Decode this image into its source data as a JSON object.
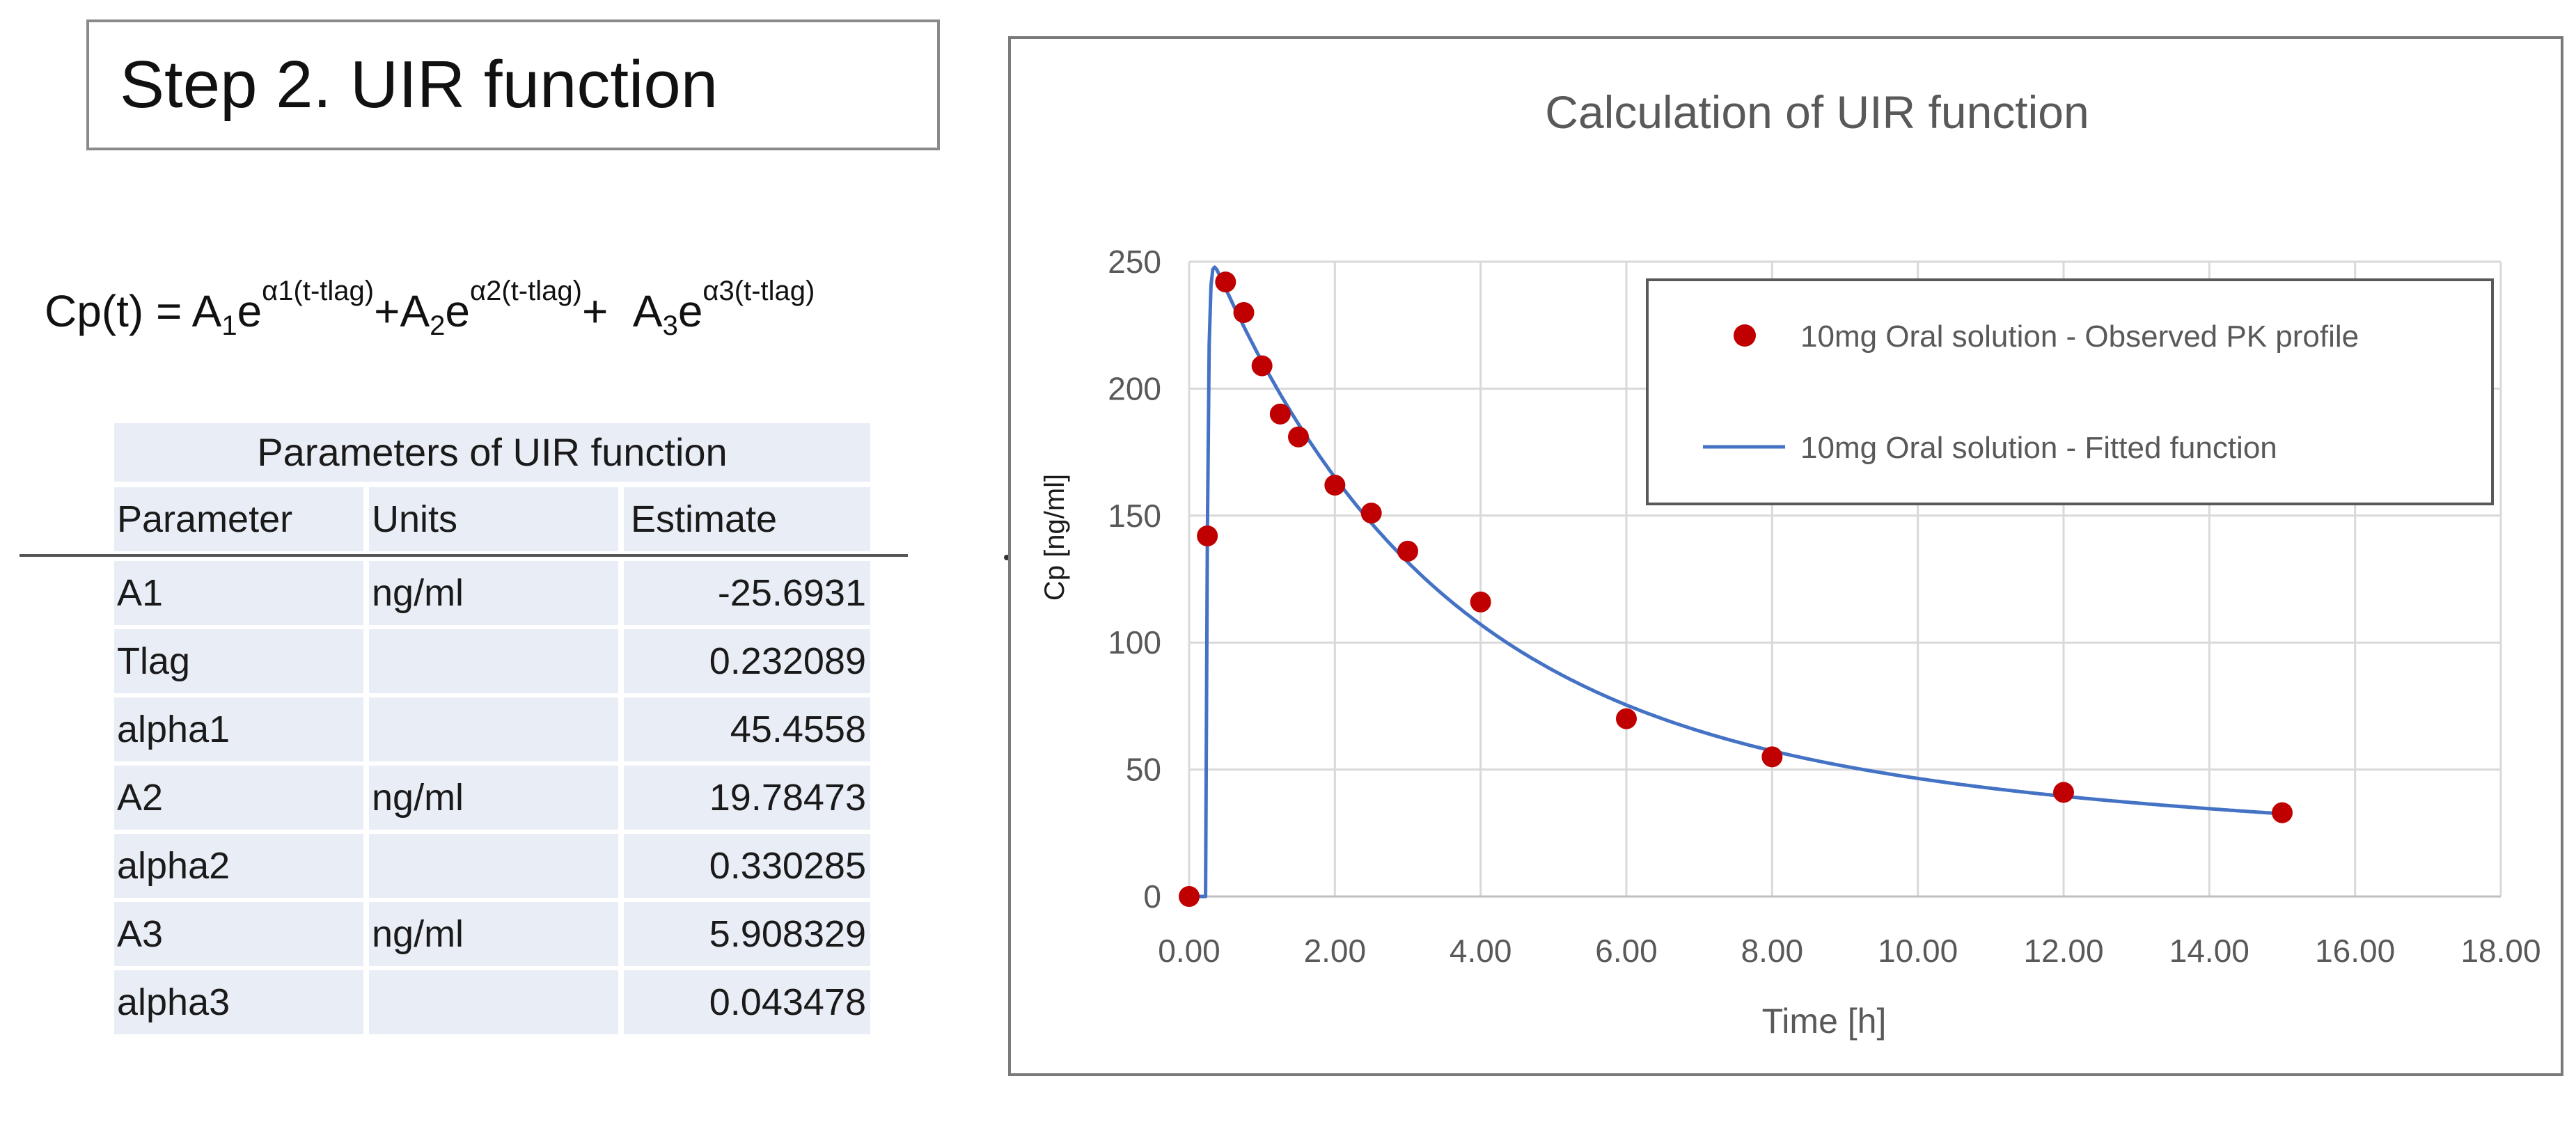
{
  "heading": "Step 2. UIR function",
  "formula": {
    "lhs": "Cp(t) = ",
    "terms": [
      {
        "coef": "A",
        "sub": "1",
        "base": "e",
        "exp": "α1(t-tlag)",
        "sep": "+"
      },
      {
        "coef": "A",
        "sub": "2",
        "base": "e",
        "exp": "α2(t-tlag)",
        "sep": "+  "
      },
      {
        "coef": "A",
        "sub": "3",
        "base": "e",
        "exp": "α3(t-tlag)",
        "sep": ""
      }
    ]
  },
  "table": {
    "caption": "Parameters of UIR function",
    "headers": [
      "Parameter",
      "Units",
      "Estimate"
    ],
    "rows": [
      [
        "A1",
        "ng/ml",
        "-25.6931"
      ],
      [
        "Tlag",
        "",
        "0.232089"
      ],
      [
        "alpha1",
        "",
        "45.4558"
      ],
      [
        "A2",
        "ng/ml",
        "19.78473"
      ],
      [
        "alpha2",
        "",
        "0.330285"
      ],
      [
        "A3",
        "ng/ml",
        "5.908329"
      ],
      [
        "alpha3",
        "",
        "0.043478"
      ]
    ]
  },
  "chart_data": {
    "type": "scatter",
    "title": "Calculation of UIR function",
    "xlabel": "Time [h]",
    "ylabel": "Cp [ng/ml]",
    "xlim": [
      0,
      18
    ],
    "ylim": [
      0,
      250
    ],
    "xticks": [
      0,
      2,
      4,
      6,
      8,
      10,
      12,
      14,
      16,
      18
    ],
    "xtick_labels": [
      "0.00",
      "2.00",
      "4.00",
      "6.00",
      "8.00",
      "10.00",
      "12.00",
      "14.00",
      "16.00",
      "18.00"
    ],
    "yticks": [
      0,
      50,
      100,
      150,
      200,
      250
    ],
    "ytick_labels": [
      "0",
      "50",
      "100",
      "150",
      "200",
      "250"
    ],
    "grid": true,
    "legend_position": "top-right",
    "series": [
      {
        "name": "10mg Oral solution - Observed PK profile",
        "kind": "points",
        "color": "#c00000",
        "x": [
          0,
          0.25,
          0.5,
          0.75,
          1.0,
          1.25,
          1.5,
          2.0,
          2.5,
          3.0,
          4.0,
          6.0,
          8.0,
          12.0,
          15.0
        ],
        "y": [
          0,
          142,
          242,
          230,
          209,
          190,
          181,
          162,
          151,
          136,
          116,
          70,
          55,
          41,
          33
        ]
      },
      {
        "name": "10mg Oral solution - Fitted function",
        "kind": "line",
        "color": "#4472c4",
        "params": {
          "A1": -25.6931,
          "Tlag": 0.232089,
          "alpha1": 45.4558,
          "A2": 19.78473,
          "alpha2": 0.330285,
          "A3": 5.908329,
          "alpha3": 0.043478,
          "dose_mg": 10
        },
        "x_range": [
          0,
          15
        ]
      }
    ]
  }
}
